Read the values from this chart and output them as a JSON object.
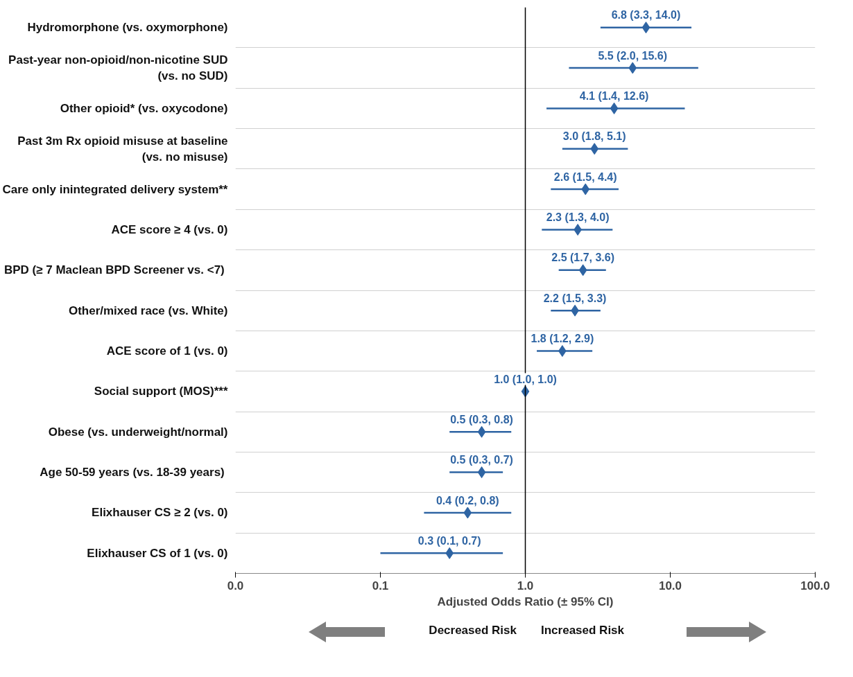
{
  "chart_data": {
    "type": "scatter",
    "orientation": "horizontal",
    "log": "x",
    "marker": "diamond",
    "grid": "y",
    "color": "#2e64a3",
    "xlabel": "Adjusted Odds Ratio (± 95% CI)",
    "categories": [
      "Hydromorphone (vs. oxymorphone)",
      "Past-year non-opioid/non-nicotine SUD\n(vs. no SUD)",
      "Other opioid* (vs. oxycodone)",
      "Past 3m Rx opioid misuse at baseline\n(vs. no misuse)",
      "Care only inintegrated delivery system**",
      "ACE score ≥ 4 (vs. 0)",
      "BPD (≥ 7  Maclean BPD Screener vs. <7)",
      "Other/mixed race (vs. White)",
      "ACE score of 1 (vs. 0)",
      "Social support (MOS)***",
      "Obese (vs. underweight/normal)",
      "Age 50-59  years (vs. 18-39 years)",
      "Elixhauser CS ≥ 2 (vs. 0)",
      "Elixhauser CS of 1 (vs. 0)"
    ],
    "values": [
      6.8,
      5.5,
      4.1,
      3.0,
      2.6,
      2.3,
      2.5,
      2.2,
      1.8,
      1.0,
      0.5,
      0.5,
      0.4,
      0.3
    ],
    "errors": [
      [
        3.3,
        14.0
      ],
      [
        2.0,
        15.6
      ],
      [
        1.4,
        12.6
      ],
      [
        1.8,
        5.1
      ],
      [
        1.5,
        4.4
      ],
      [
        1.3,
        4.0
      ],
      [
        1.7,
        3.6
      ],
      [
        1.5,
        3.3
      ],
      [
        1.2,
        2.9
      ],
      [
        1.0,
        1.0
      ],
      [
        0.3,
        0.8
      ],
      [
        0.3,
        0.7
      ],
      [
        0.2,
        0.8
      ],
      [
        0.1,
        0.7
      ]
    ],
    "value_labels": [
      "6.8 (3.3, 14.0)",
      "5.5 (2.0, 15.6)",
      "4.1 (1.4, 12.6)",
      "3.0 (1.8, 5.1)",
      "2.6 (1.5, 4.4)",
      "2.3 (1.3, 4.0)",
      "2.5 (1.7, 3.6)",
      "2.2 (1.5, 3.3)",
      "1.8 (1.2, 2.9)",
      "1.0 (1.0, 1.0)",
      "0.5 (0.3, 0.8)",
      "0.5 (0.3, 0.7)",
      "0.4 (0.2, 0.8)",
      "0.3 (0.1, 0.7)"
    ],
    "xlim": [
      0.01,
      100
    ],
    "xticks": [
      {
        "value": 0.01,
        "label": "0.0"
      },
      {
        "value": 0.1,
        "label": "0.1"
      },
      {
        "value": 1,
        "label": "1.0"
      },
      {
        "value": 10,
        "label": "10.0"
      },
      {
        "value": 100,
        "label": "100.0"
      }
    ],
    "ref_lines": [
      {
        "axis": "x",
        "value": 1,
        "color": "#000000"
      }
    ],
    "annotations": [
      "Decreased Risk",
      "Increased Risk"
    ]
  }
}
